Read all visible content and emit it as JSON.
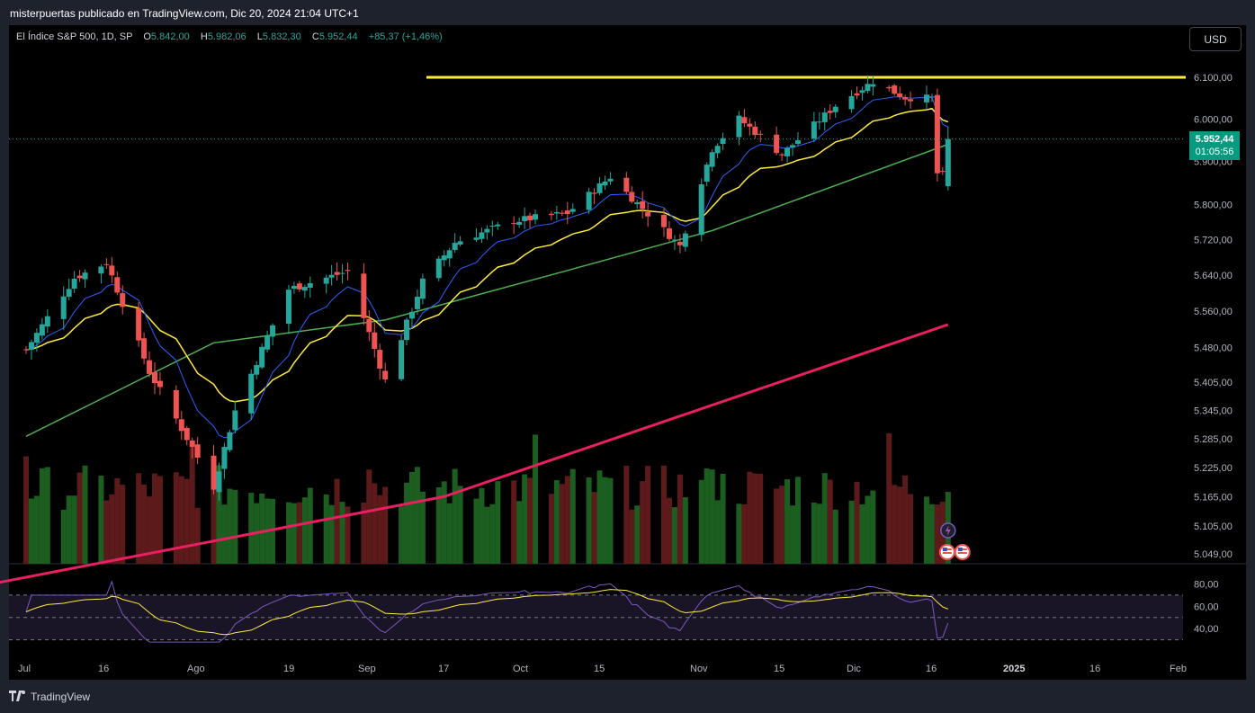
{
  "header": {
    "title": "misterpuertas publicado en TradingView.com, Dic 20, 2024 21:04 UTC+1"
  },
  "symbol": {
    "name": "El Índice S&P 500, 1D, SP",
    "open_label": "O",
    "open": "5.842,00",
    "high_label": "H",
    "high": "5.982,06",
    "low_label": "L",
    "low": "5.832,30",
    "close_label": "C",
    "close": "5.952,44",
    "change": "+85,37 (+1,46%)"
  },
  "currency_button": "USD",
  "price_axis": {
    "ticks": [
      "6.100,00",
      "6.000,00",
      "5.900,00",
      "5.800,00",
      "5.720,00",
      "5.640,00",
      "5.560,00",
      "5.480,00",
      "5.405,00",
      "5.345,00",
      "5.285,00",
      "5.225,00",
      "5.165,00",
      "5.105,00",
      "5.049,00"
    ],
    "scale": "log"
  },
  "last_price": {
    "value": "5.952,44",
    "countdown": "01:05:56"
  },
  "rsi_axis": {
    "ticks": [
      "80,00",
      "60,00",
      "40,00"
    ]
  },
  "time_axis": {
    "labels": [
      "Jul",
      "16",
      "Ago",
      "19",
      "Sep",
      "17",
      "Oct",
      "15",
      "Nov",
      "15",
      "Dic",
      "16",
      "2025",
      "16",
      "Feb"
    ]
  },
  "footer": {
    "brand": "TradingView"
  },
  "colors": {
    "up": "#26a69a",
    "down": "#ef5350",
    "volume_up": "#1b5e20",
    "volume_down": "#5d1a1a",
    "resistance": "#ffeb3b",
    "ema_fast": "#2962ff",
    "ema_mid": "#ffeb3b",
    "sma_50": "#4caf50",
    "sma_200": "#e91e63",
    "rsi": "#7e57c2",
    "rsi_ma": "#ffeb3b"
  },
  "chart_data": {
    "type": "candlestick",
    "symbol": "El Índice S&P 500",
    "interval": "1D",
    "x_range": [
      "2024-07-01",
      "2025-02-01"
    ],
    "y_range": [
      5049,
      6120
    ],
    "resistance_level": 6100,
    "last_bar": {
      "open": 5842.0,
      "high": 5982.06,
      "low": 5832.3,
      "close": 5952.44
    },
    "series": [
      {
        "type": "candles",
        "anchor_closes": [
          [
            "2024-07-01",
            5475
          ],
          [
            "2024-07-10",
            5633
          ],
          [
            "2024-07-16",
            5667
          ],
          [
            "2024-07-24",
            5427
          ],
          [
            "2024-08-05",
            5186
          ],
          [
            "2024-08-09",
            5344
          ],
          [
            "2024-08-19",
            5608
          ],
          [
            "2024-08-30",
            5648
          ],
          [
            "2024-09-06",
            5408
          ],
          [
            "2024-09-13",
            5626
          ],
          [
            "2024-09-19",
            5713
          ],
          [
            "2024-09-30",
            5762
          ],
          [
            "2024-10-10",
            5780
          ],
          [
            "2024-10-18",
            5864
          ],
          [
            "2024-10-31",
            5705
          ],
          [
            "2024-11-06",
            5929
          ],
          [
            "2024-11-11",
            6001
          ],
          [
            "2024-11-19",
            5916
          ],
          [
            "2024-11-29",
            6032
          ],
          [
            "2024-12-06",
            6090
          ],
          [
            "2024-12-12",
            6051
          ],
          [
            "2024-12-17",
            6050
          ],
          [
            "2024-12-18",
            5872
          ],
          [
            "2024-12-19",
            5867
          ],
          [
            "2024-12-20",
            5952
          ]
        ]
      },
      {
        "type": "sma",
        "name": "",
        "anchors": [
          [
            "2024-07-01",
            5290
          ],
          [
            "2024-08-05",
            5490
          ],
          [
            "2024-09-06",
            5540
          ],
          [
            "2024-10-10",
            5650
          ],
          [
            "2024-11-06",
            5740
          ],
          [
            "2024-12-20",
            5940
          ]
        ]
      },
      {
        "type": "sma",
        "name": "",
        "anchors": [
          [
            "2024-06-25",
            4990
          ],
          [
            "2024-09-17",
            5165
          ],
          [
            "2024-12-20",
            5530
          ]
        ]
      }
    ],
    "rsi": {
      "range": [
        20,
        90
      ],
      "levels": [
        70,
        50,
        30
      ],
      "last": 45
    }
  }
}
